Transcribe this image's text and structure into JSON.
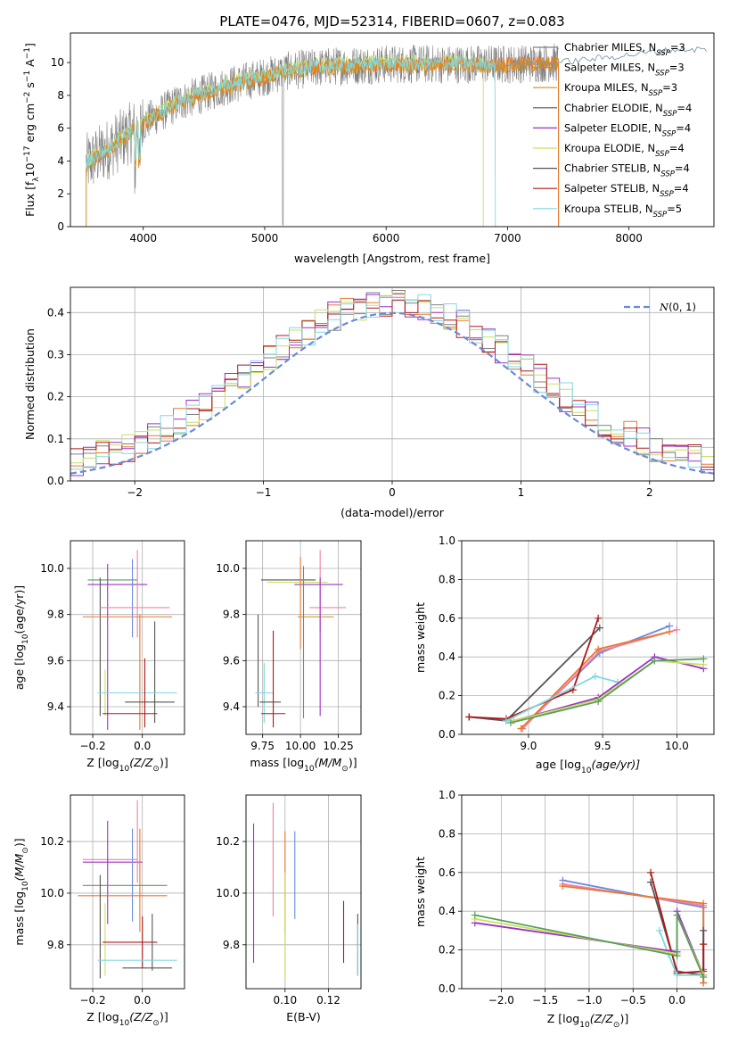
{
  "colors": {
    "axes": "#000000",
    "grid": "#b0b0b0",
    "gray": "#808080",
    "orange": "#e87830",
    "darkorange": "#d98c1a",
    "darkgray": "#555555",
    "purple": "#9b30c8",
    "yellowgreen": "#c8e060",
    "darkred": "#b01818",
    "cyan": "#80d8e0",
    "blue": "#6a8ae0",
    "pink": "#f080a8",
    "green": "#58a058",
    "normal": "#6a8ad8"
  },
  "chart_data": [
    {
      "id": "spectrum",
      "type": "line",
      "title": "PLATE=0476, MJD=52314, FIBERID=0607, z=0.083",
      "xlabel": "wavelength [Angstrom, rest frame]",
      "ylabel_parts": [
        "Flux [f",
        "λ",
        "10",
        "−17",
        " erg cm",
        "−2",
        " s",
        "−1",
        " A",
        "−1",
        "]"
      ],
      "xlim": [
        3400,
        8700
      ],
      "ylim": [
        0,
        11.8
      ],
      "xticks": [
        4000,
        5000,
        6000,
        7000,
        8000
      ],
      "yticks": [
        0,
        2,
        4,
        6,
        8,
        10
      ],
      "grid": false,
      "legend_position": "top-right",
      "observed_range": [
        3530,
        7420
      ],
      "anchors_x": [
        3530,
        3800,
        4000,
        4300,
        4700,
        5200,
        5600,
        6000,
        6300,
        6600,
        7000,
        7400,
        7800,
        8400
      ],
      "anchors_y": [
        3.8,
        5.2,
        6.3,
        7.6,
        8.6,
        9.5,
        9.8,
        9.9,
        9.9,
        9.9,
        9.9,
        10.0,
        10.3,
        10.8
      ],
      "legend": [
        {
          "text": "Chabrier MILES, N",
          "sub": "SSP",
          "suffix": "=3",
          "color": "#808080"
        },
        {
          "text": "Salpeter MILES, N",
          "sub": "SSP",
          "suffix": "=3",
          "color": "#e87830"
        },
        {
          "text": "Kroupa MILES, N",
          "sub": "SSP",
          "suffix": "=3",
          "color": "#d98c1a"
        },
        {
          "text": "Chabrier ELODIE, N",
          "sub": "SSP",
          "suffix": "=4",
          "color": "#555555"
        },
        {
          "text": "Salpeter ELODIE, N",
          "sub": "SSP",
          "suffix": "=4",
          "color": "#9b30c8"
        },
        {
          "text": "Kroupa ELODIE, N",
          "sub": "SSP",
          "suffix": "=4",
          "color": "#c8e060"
        },
        {
          "text": "Chabrier STELIB, N",
          "sub": "SSP",
          "suffix": "=4",
          "color": "#555555"
        },
        {
          "text": "Salpeter STELIB, N",
          "sub": "SSP",
          "suffix": "=4",
          "color": "#b01818"
        },
        {
          "text": "Kroupa STELIB, N",
          "sub": "SSP",
          "suffix": "=5",
          "color": "#80d8e0"
        }
      ]
    },
    {
      "id": "residuals",
      "type": "bar",
      "xlabel": "(data-model)/error",
      "ylabel": "Normed distribution",
      "xlim": [
        -2.5,
        2.5
      ],
      "ylim": [
        0,
        0.46
      ],
      "xticks": [
        -2,
        -1,
        0,
        1,
        2
      ],
      "yticks": [
        0.0,
        0.1,
        0.2,
        0.3,
        0.4
      ],
      "grid": true,
      "legend_position": "top-right",
      "legend": [
        {
          "text": "N(0, 1)",
          "color": "#6a8ad8"
        }
      ],
      "bin_width": 0.1,
      "series_colors": [
        "#808080",
        "#e87830",
        "#9b30c8",
        "#c8e060",
        "#b01818",
        "#80d8e0"
      ]
    },
    {
      "id": "age-vs-Z",
      "type": "scatter",
      "xlabel_parts": [
        "Z [log",
        "10",
        "(Z/Z",
        "⊙",
        ")]"
      ],
      "ylabel_parts": [
        "age  [log",
        "10",
        "(age/yr)]"
      ],
      "xlim": [
        -0.29,
        0.17
      ],
      "ylim": [
        9.28,
        10.12
      ],
      "xticks": [
        -0.2,
        0.0
      ],
      "yticks": [
        9.4,
        9.6,
        9.8,
        10.0
      ],
      "grid": true,
      "points": [
        {
          "x": -0.12,
          "y": 9.95,
          "xerr": 0.1,
          "yerr": 0.0,
          "color": "#58a058"
        },
        {
          "x": -0.1,
          "y": 9.93,
          "xerr": 0.12,
          "yerr": 0.0,
          "color": "#9b30c8"
        },
        {
          "x": -0.14,
          "y": 9.66,
          "xerr": 0.0,
          "yerr": 0.36,
          "color": "#9b30c8"
        },
        {
          "x": -0.17,
          "y": 9.66,
          "xerr": 0.0,
          "yerr": 0.3,
          "color": "#555555"
        },
        {
          "x": -0.04,
          "y": 9.87,
          "xerr": 0.0,
          "yerr": 0.17,
          "color": "#6a8ae0"
        },
        {
          "x": -0.02,
          "y": 9.89,
          "xerr": 0.0,
          "yerr": 0.19,
          "color": "#f080a8"
        },
        {
          "x": -0.03,
          "y": 9.83,
          "xerr": 0.14,
          "yerr": 0.0,
          "color": "#f080a8"
        },
        {
          "x": -0.06,
          "y": 9.79,
          "xerr": 0.18,
          "yerr": 0.0,
          "color": "#e87830"
        },
        {
          "x": -0.01,
          "y": 9.55,
          "xerr": 0.0,
          "yerr": 0.25,
          "color": "#e87830"
        },
        {
          "x": 0.05,
          "y": 9.55,
          "xerr": 0.0,
          "yerr": 0.22,
          "color": "#555555"
        },
        {
          "x": -0.15,
          "y": 9.46,
          "xerr": 0.0,
          "yerr": 0.1,
          "color": "#c8e060"
        },
        {
          "x": -0.02,
          "y": 9.46,
          "xerr": 0.16,
          "yerr": 0.0,
          "color": "#80d8e0"
        },
        {
          "x": 0.03,
          "y": 9.42,
          "xerr": 0.1,
          "yerr": 0.0,
          "color": "#555555"
        },
        {
          "x": -0.05,
          "y": 9.37,
          "xerr": 0.11,
          "yerr": 0.0,
          "color": "#b01818"
        },
        {
          "x": 0.01,
          "y": 9.46,
          "xerr": 0.0,
          "yerr": 0.15,
          "color": "#b01818"
        }
      ]
    },
    {
      "id": "age-vs-mass",
      "type": "scatter",
      "xlabel_parts": [
        "mass [log",
        "10",
        "(M/M",
        "⊙",
        ")]"
      ],
      "xlim": [
        9.64,
        10.4
      ],
      "ylim": [
        9.28,
        10.12
      ],
      "xticks": [
        9.75,
        10.0,
        10.25
      ],
      "yticks": [
        9.4,
        9.6,
        9.8,
        10.0
      ],
      "grid": true,
      "points": [
        {
          "x": 9.92,
          "y": 9.95,
          "xerr": 0.18,
          "yerr": 0.0,
          "color": "#555555"
        },
        {
          "x": 9.98,
          "y": 9.94,
          "xerr": 0.2,
          "yerr": 0.0,
          "color": "#c8e060"
        },
        {
          "x": 10.12,
          "y": 9.93,
          "xerr": 0.16,
          "yerr": 0.0,
          "color": "#9b30c8"
        },
        {
          "x": 10.0,
          "y": 9.85,
          "xerr": 0.0,
          "yerr": 0.2,
          "color": "#e87830"
        },
        {
          "x": 10.18,
          "y": 9.83,
          "xerr": 0.12,
          "yerr": 0.0,
          "color": "#f080a8"
        },
        {
          "x": 10.1,
          "y": 9.79,
          "xerr": 0.12,
          "yerr": 0.0,
          "color": "#d98c1a"
        },
        {
          "x": 10.13,
          "y": 9.9,
          "xerr": 0.0,
          "yerr": 0.18,
          "color": "#f080a8"
        },
        {
          "x": 10.02,
          "y": 9.68,
          "xerr": 0.0,
          "yerr": 0.33,
          "color": "#58a058"
        },
        {
          "x": 10.13,
          "y": 9.66,
          "xerr": 0.0,
          "yerr": 0.3,
          "color": "#9b30c8"
        },
        {
          "x": 9.72,
          "y": 9.6,
          "xerr": 0.0,
          "yerr": 0.2,
          "color": "#555555"
        },
        {
          "x": 9.76,
          "y": 9.46,
          "xerr": 0.06,
          "yerr": 0.0,
          "color": "#80d8e0"
        },
        {
          "x": 9.76,
          "y": 9.46,
          "xerr": 0.0,
          "yerr": 0.13,
          "color": "#80d8e0"
        },
        {
          "x": 9.8,
          "y": 9.42,
          "xerr": 0.07,
          "yerr": 0.0,
          "color": "#555555"
        },
        {
          "x": 9.82,
          "y": 9.52,
          "xerr": 0.0,
          "yerr": 0.21,
          "color": "#b01818"
        },
        {
          "x": 9.82,
          "y": 9.37,
          "xerr": 0.08,
          "yerr": 0.0,
          "color": "#b01818"
        }
      ]
    },
    {
      "id": "mass-weight-vs-age",
      "type": "line",
      "xlabel_parts": [
        "age  [log",
        "10",
        "(age/yr)]"
      ],
      "ylabel": "mass weight",
      "xlim": [
        8.55,
        10.25
      ],
      "ylim": [
        0.0,
        1.0
      ],
      "xticks": [
        9.0,
        9.5,
        10.0
      ],
      "yticks": [
        0.0,
        0.2,
        0.4,
        0.6,
        0.8,
        1.0
      ],
      "grid": true,
      "series": [
        {
          "color": "#6a8ae0",
          "x": [
            8.95,
            9.48,
            9.95
          ],
          "y": [
            0.03,
            0.42,
            0.56
          ]
        },
        {
          "color": "#f080a8",
          "x": [
            8.96,
            9.48,
            10.0
          ],
          "y": [
            0.03,
            0.43,
            0.54
          ]
        },
        {
          "color": "#e87830",
          "x": [
            8.95,
            9.47,
            9.95
          ],
          "y": [
            0.03,
            0.44,
            0.53
          ]
        },
        {
          "color": "#555555",
          "x": [
            8.6,
            8.85,
            9.48
          ],
          "y": [
            0.09,
            0.07,
            0.55
          ]
        },
        {
          "color": "#b01818",
          "x": [
            8.6,
            8.85,
            9.3,
            9.47
          ],
          "y": [
            0.09,
            0.08,
            0.23,
            0.6
          ]
        },
        {
          "color": "#80d8e0",
          "x": [
            8.85,
            9.45,
            9.6
          ],
          "y": [
            0.07,
            0.3,
            0.27
          ]
        },
        {
          "color": "#9b30c8",
          "x": [
            8.9,
            9.47,
            9.85,
            10.18
          ],
          "y": [
            0.07,
            0.19,
            0.4,
            0.34
          ]
        },
        {
          "color": "#c8e060",
          "x": [
            8.9,
            9.47,
            9.85,
            10.18
          ],
          "y": [
            0.07,
            0.18,
            0.38,
            0.36
          ]
        },
        {
          "color": "#58a058",
          "x": [
            8.88,
            9.47,
            9.85,
            10.18
          ],
          "y": [
            0.06,
            0.17,
            0.38,
            0.39
          ]
        }
      ]
    },
    {
      "id": "mass-vs-Z",
      "type": "scatter",
      "xlabel_parts": [
        "Z [log",
        "10",
        "(Z/Z",
        "⊙",
        ")]"
      ],
      "ylabel_parts": [
        "mass [log",
        "10",
        "(M/M",
        "⊙",
        ")]"
      ],
      "xlim": [
        -0.29,
        0.17
      ],
      "ylim": [
        9.63,
        10.38
      ],
      "xticks": [
        -0.2,
        0.0
      ],
      "yticks": [
        9.8,
        10.0,
        10.2
      ],
      "grid": true,
      "points": [
        {
          "x": -0.13,
          "y": 10.13,
          "xerr": 0.11,
          "yerr": 0.0,
          "color": "#f080a8"
        },
        {
          "x": -0.12,
          "y": 10.12,
          "xerr": 0.12,
          "yerr": 0.0,
          "color": "#9b30c8"
        },
        {
          "x": -0.14,
          "y": 10.08,
          "xerr": 0.0,
          "yerr": 0.2,
          "color": "#9b30c8"
        },
        {
          "x": -0.02,
          "y": 10.2,
          "xerr": 0.0,
          "yerr": 0.16,
          "color": "#f080a8"
        },
        {
          "x": -0.01,
          "y": 10.05,
          "xerr": 0.0,
          "yerr": 0.2,
          "color": "#e87830"
        },
        {
          "x": -0.04,
          "y": 10.07,
          "xerr": 0.0,
          "yerr": 0.18,
          "color": "#6a8ae0"
        },
        {
          "x": -0.07,
          "y": 10.03,
          "xerr": 0.17,
          "yerr": 0.0,
          "color": "#58a058"
        },
        {
          "x": -0.08,
          "y": 9.99,
          "xerr": 0.18,
          "yerr": 0.0,
          "color": "#e87830"
        },
        {
          "x": -0.17,
          "y": 9.87,
          "xerr": 0.0,
          "yerr": 0.2,
          "color": "#555555"
        },
        {
          "x": -0.15,
          "y": 9.82,
          "xerr": 0.0,
          "yerr": 0.14,
          "color": "#c8e060"
        },
        {
          "x": 0.0,
          "y": 9.81,
          "xerr": 0.0,
          "yerr": 0.1,
          "color": "#b01818"
        },
        {
          "x": -0.05,
          "y": 9.81,
          "xerr": 0.11,
          "yerr": 0.0,
          "color": "#b01818"
        },
        {
          "x": 0.04,
          "y": 9.81,
          "xerr": 0.0,
          "yerr": 0.11,
          "color": "#555555"
        },
        {
          "x": -0.02,
          "y": 9.74,
          "xerr": 0.16,
          "yerr": 0.0,
          "color": "#80d8e0"
        },
        {
          "x": 0.02,
          "y": 9.71,
          "xerr": 0.1,
          "yerr": 0.0,
          "color": "#555555"
        }
      ]
    },
    {
      "id": "mass-vs-EBV",
      "type": "scatter",
      "xlabel": "E(B-V)",
      "xlim": [
        0.082,
        0.135
      ],
      "ylim": [
        9.63,
        10.38
      ],
      "xticks": [
        0.1,
        0.12
      ],
      "yticks": [
        9.8,
        10.0,
        10.2
      ],
      "grid": true,
      "points": [
        {
          "x": 0.0855,
          "y": 10.0,
          "xerr": 0.0,
          "yerr": 0.27,
          "color": "#9b30c8"
        },
        {
          "x": 0.0945,
          "y": 10.13,
          "xerr": 0.0,
          "yerr": 0.22,
          "color": "#f080a8"
        },
        {
          "x": 0.1,
          "y": 10.04,
          "xerr": 0.0,
          "yerr": 0.2,
          "color": "#e87830"
        },
        {
          "x": 0.1,
          "y": 9.87,
          "xerr": 0.0,
          "yerr": 0.21,
          "color": "#c8e060"
        },
        {
          "x": 0.1045,
          "y": 10.07,
          "xerr": 0.0,
          "yerr": 0.17,
          "color": "#6a8ae0"
        },
        {
          "x": 0.127,
          "y": 9.85,
          "xerr": 0.0,
          "yerr": 0.12,
          "color": "#b01818"
        },
        {
          "x": 0.1335,
          "y": 9.8,
          "xerr": 0.0,
          "yerr": 0.12,
          "color": "#555555"
        },
        {
          "x": 0.1335,
          "y": 9.78,
          "xerr": 0.0,
          "yerr": 0.1,
          "color": "#80d8e0"
        }
      ]
    },
    {
      "id": "mass-weight-vs-Z",
      "type": "line",
      "xlabel_parts": [
        "Z [log",
        "10",
        "(Z/Z",
        "⊙",
        ")]"
      ],
      "ylabel": "mass weight",
      "xlim": [
        -2.45,
        0.42
      ],
      "ylim": [
        0.0,
        1.0
      ],
      "xticks": [
        -2.0,
        -1.5,
        -1.0,
        -0.5,
        0.0
      ],
      "yticks": [
        0.0,
        0.2,
        0.4,
        0.6,
        0.8,
        1.0
      ],
      "grid": true,
      "series": [
        {
          "color": "#6a8ae0",
          "x": [
            -1.3,
            0.3,
            0.3,
            0.3
          ],
          "y": [
            0.56,
            0.42,
            0.1,
            0.03
          ]
        },
        {
          "color": "#f080a8",
          "x": [
            -1.3,
            0.3,
            0.3
          ],
          "y": [
            0.54,
            0.43,
            0.03
          ]
        },
        {
          "color": "#e87830",
          "x": [
            -1.3,
            0.3,
            0.3
          ],
          "y": [
            0.53,
            0.44,
            0.03
          ]
        },
        {
          "color": "#555555",
          "x": [
            -0.3,
            0.0,
            0.3,
            0.3
          ],
          "y": [
            0.55,
            0.09,
            0.07,
            0.3
          ]
        },
        {
          "color": "#b01818",
          "x": [
            -0.3,
            0.0,
            0.3,
            0.3
          ],
          "y": [
            0.6,
            0.08,
            0.09,
            0.23
          ]
        },
        {
          "color": "#80d8e0",
          "x": [
            -0.2,
            -0.1,
            0.0,
            0.3
          ],
          "y": [
            0.3,
            0.18,
            0.07,
            0.07
          ]
        },
        {
          "color": "#9b30c8",
          "x": [
            -2.3,
            0.0,
            0.0,
            0.3
          ],
          "y": [
            0.34,
            0.19,
            0.4,
            0.07
          ]
        },
        {
          "color": "#c8e060",
          "x": [
            -2.3,
            0.0,
            0.0,
            0.3
          ],
          "y": [
            0.36,
            0.18,
            0.38,
            0.07
          ]
        },
        {
          "color": "#58a058",
          "x": [
            -2.3,
            0.0,
            0.0,
            0.3
          ],
          "y": [
            0.38,
            0.17,
            0.38,
            0.06
          ]
        }
      ]
    }
  ]
}
